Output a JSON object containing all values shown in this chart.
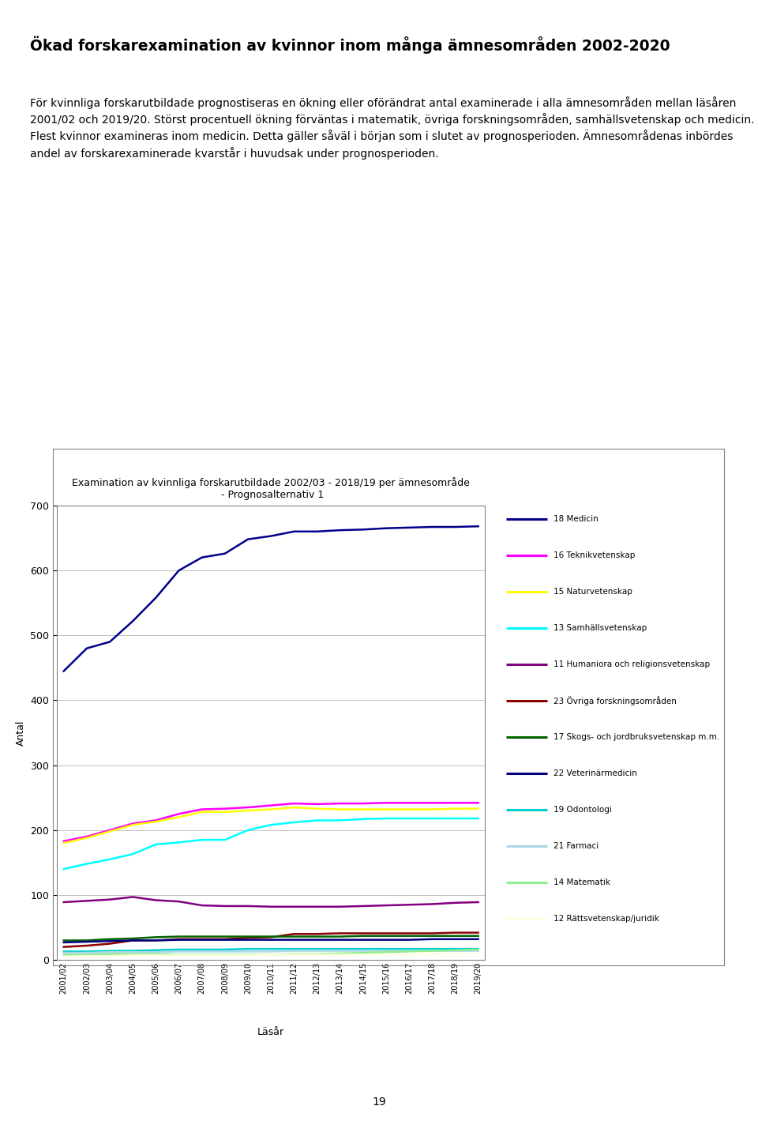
{
  "title_main": "Ökad forskarexamination av kvinnor inom många ämnesområden 2002-2020",
  "text_para1": "För kvinnliga forskarutbildade prognostiseras en ökning eller oförändrat antal examinerade i alla ämnesområden mellan läsåren 2001/02 och 2019/20. Störst procentuell ökning förväntas i matematik, övriga forskningsområden, samhällsvetenskap och medicin. Flest kvinnor examineras inom medicin. Detta gäller såväl i början som i slutet av prognosperioden. Ämnesområdenas inbördes andel av forskarexaminerade kvarstår i huvudsak under prognosperioden.",
  "chart_title_line1": "Examination av kvinnliga forskarutbildade 2002/03 - 2018/19 per ämnesområde",
  "chart_title_line2": " - Prognosalternativ 1",
  "xlabel": "Läsår",
  "ylabel": "Antal",
  "x_labels": [
    "2001/02",
    "2002/03",
    "2003/04",
    "2004/05",
    "2005/06",
    "2006/07",
    "2007/08",
    "2008/09",
    "2009/10",
    "2010/11",
    "2011/12",
    "2012/13",
    "2013/14",
    "2014/15",
    "2015/16",
    "2016/17",
    "2017/18",
    "2018/19",
    "2019/20"
  ],
  "ylim": [
    0,
    700
  ],
  "yticks": [
    0,
    100,
    200,
    300,
    400,
    500,
    600,
    700
  ],
  "series": [
    {
      "name": "18 Medicin",
      "color": "#00008B",
      "values": [
        445,
        480,
        490,
        522,
        558,
        600,
        620,
        626,
        648,
        653,
        660,
        660,
        662,
        663,
        665,
        666,
        667,
        667,
        668
      ]
    },
    {
      "name": "16 Teknikvetenskap",
      "color": "#FF00FF",
      "values": [
        183,
        190,
        200,
        210,
        215,
        225,
        232,
        233,
        235,
        238,
        241,
        240,
        241,
        241,
        242,
        242,
        242,
        242,
        242
      ]
    },
    {
      "name": "15 Naturvetenskap",
      "color": "#FFFF00",
      "values": [
        180,
        188,
        198,
        208,
        213,
        220,
        228,
        228,
        230,
        232,
        235,
        233,
        232,
        232,
        232,
        232,
        232,
        233,
        233
      ]
    },
    {
      "name": "13 Samhällsvetenskap",
      "color": "#00FFFF",
      "values": [
        140,
        148,
        155,
        163,
        178,
        181,
        185,
        185,
        200,
        208,
        212,
        215,
        215,
        217,
        218,
        218,
        218,
        218,
        218
      ]
    },
    {
      "name": "11 Humaniora och religionsvetenskap",
      "color": "#800080",
      "values": [
        89,
        91,
        93,
        97,
        92,
        90,
        84,
        83,
        83,
        82,
        82,
        82,
        82,
        83,
        84,
        85,
        86,
        88,
        89
      ]
    },
    {
      "name": "23 Övriga forskningsområden",
      "color": "#8B0000",
      "values": [
        20,
        22,
        25,
        30,
        30,
        32,
        32,
        32,
        34,
        35,
        40,
        40,
        41,
        41,
        41,
        41,
        41,
        42,
        42
      ]
    },
    {
      "name": "17 Skogs- och jordbruksvetenskap m.m.",
      "color": "#006400",
      "values": [
        30,
        30,
        32,
        33,
        35,
        36,
        36,
        36,
        36,
        36,
        36,
        36,
        36,
        37,
        37,
        37,
        37,
        37,
        37
      ]
    },
    {
      "name": "22 Veterinärmedicin",
      "color": "#000080",
      "values": [
        27,
        28,
        29,
        30,
        30,
        31,
        31,
        31,
        31,
        31,
        31,
        31,
        31,
        31,
        31,
        31,
        32,
        32,
        32
      ]
    },
    {
      "name": "19 Odontologi",
      "color": "#00CED1",
      "values": [
        13,
        13,
        14,
        14,
        15,
        16,
        16,
        16,
        17,
        17,
        17,
        17,
        17,
        17,
        17,
        17,
        17,
        17,
        17
      ]
    },
    {
      "name": "21 Farmaci",
      "color": "#ADD8E6",
      "values": [
        11,
        11,
        12,
        12,
        12,
        13,
        13,
        13,
        13,
        13,
        14,
        14,
        14,
        14,
        14,
        14,
        14,
        14,
        14
      ]
    },
    {
      "name": "14 Matematik",
      "color": "#90EE90",
      "values": [
        8,
        8,
        9,
        9,
        9,
        8,
        8,
        8,
        8,
        8,
        9,
        9,
        10,
        11,
        12,
        13,
        14,
        15,
        16
      ]
    },
    {
      "name": "12 Rättsvetenskap/juridik",
      "color": "#FFFFE0",
      "values": [
        5,
        6,
        6,
        7,
        7,
        7,
        7,
        7,
        7,
        8,
        8,
        8,
        8,
        8,
        8,
        8,
        9,
        9,
        9
      ]
    }
  ],
  "page_number": "19",
  "background_color": "#FFFFFF",
  "chart_bg": "#FFFFFF",
  "grid_color": "#C0C0C0",
  "border_color": "#808080"
}
